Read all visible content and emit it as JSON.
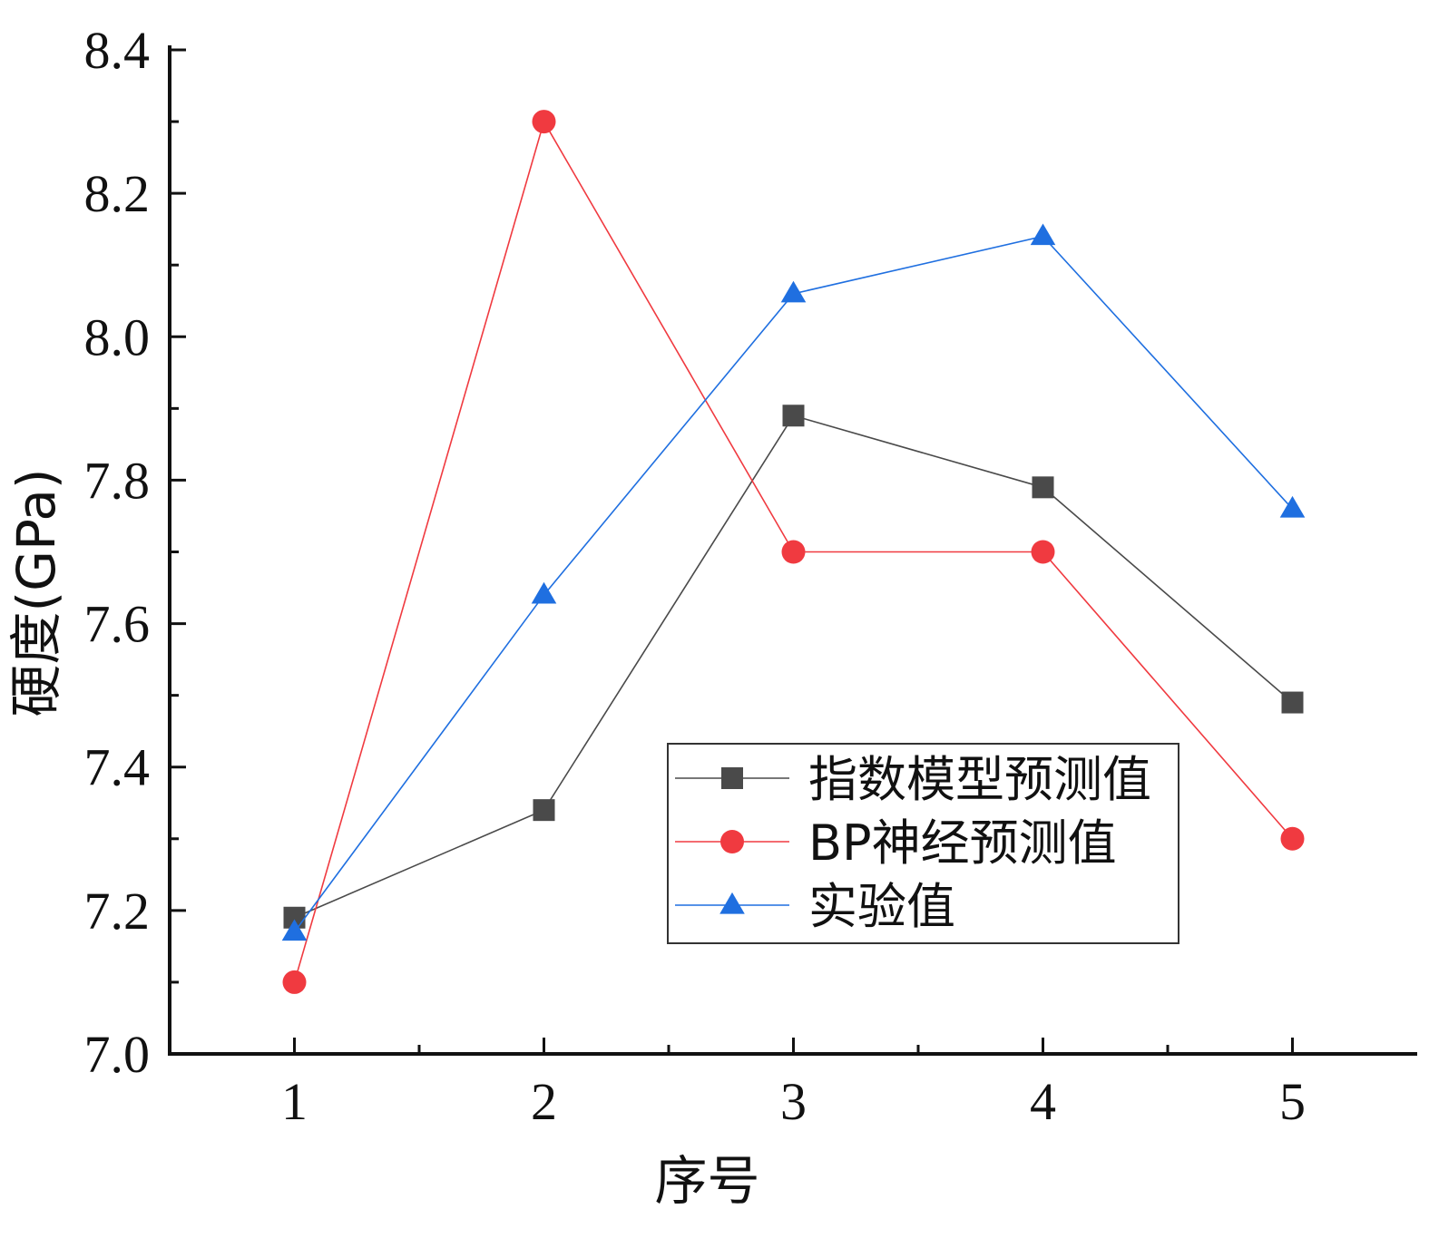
{
  "chart_data": {
    "type": "line",
    "title": "",
    "xlabel": "序号",
    "ylabel": "硬度(GPa)",
    "x": [
      1,
      2,
      3,
      4,
      5
    ],
    "x_ticks": [
      "1",
      "2",
      "3",
      "4",
      "5"
    ],
    "ylim": [
      7.0,
      8.4
    ],
    "y_ticks": [
      "7.0",
      "7.2",
      "7.4",
      "7.6",
      "7.8",
      "8.0",
      "8.2",
      "8.4"
    ],
    "grid": false,
    "legend_position": "lower-right",
    "series": [
      {
        "name": "指数模型预测值",
        "marker": "square",
        "color": "#4a4a4a",
        "values": [
          7.19,
          7.34,
          7.89,
          7.79,
          7.49
        ]
      },
      {
        "name": "BP神经预测值",
        "marker": "circle",
        "color": "#f03a40",
        "values": [
          7.1,
          8.3,
          7.7,
          7.7,
          7.3
        ]
      },
      {
        "name": "实验值",
        "marker": "triangle",
        "color": "#1f6fe0",
        "values": [
          7.17,
          7.64,
          8.06,
          8.14,
          7.76
        ]
      }
    ]
  }
}
